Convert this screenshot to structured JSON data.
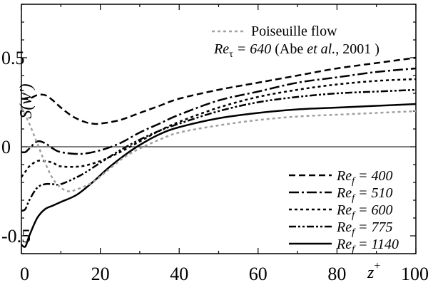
{
  "chart_data": {
    "type": "line",
    "xlabel": "z",
    "xlabel_sup": "+",
    "ylabel": "S(w')",
    "xlim": [
      0,
      100
    ],
    "ylim": [
      -0.6,
      0.8
    ],
    "x_ticks": [
      0,
      20,
      40,
      60,
      80,
      100
    ],
    "y_ticks": [
      -0.5,
      0,
      0.5
    ],
    "y_tick_labels": [
      "-0.5",
      "0",
      "0.5"
    ],
    "x_tick_labels": [
      "0",
      "20",
      "40",
      "60",
      "80",
      "100"
    ],
    "zero_line": true,
    "grid": false,
    "legend_top": {
      "placement": "top-right",
      "line1": "Poiseuille flow",
      "line2_re": "Re",
      "line2_sub": "τ",
      "line2_eq": " = 640",
      "line2_rest_a": " (Abe ",
      "line2_etal": "et al.",
      "line2_rest_b": ", 2001 )"
    },
    "legend_bottom": {
      "placement": "bottom-right"
    },
    "series": [
      {
        "name_re": "Re",
        "name_sub": "f",
        "name_val": " = 400",
        "color": "#000000",
        "dash": "9,5",
        "width": 2.5,
        "x": [
          0,
          2,
          4,
          6,
          8,
          10,
          13,
          16,
          18,
          20,
          25,
          30,
          35,
          40,
          50,
          60,
          70,
          80,
          90,
          100
        ],
        "y": [
          0.27,
          0.27,
          0.29,
          0.29,
          0.26,
          0.22,
          0.17,
          0.14,
          0.13,
          0.13,
          0.15,
          0.19,
          0.23,
          0.27,
          0.32,
          0.36,
          0.4,
          0.44,
          0.47,
          0.5
        ]
      },
      {
        "name_re": "Re",
        "name_sub": "f",
        "name_val": " = 510",
        "color": "#000000",
        "dash": "14,4,3,4",
        "width": 2.5,
        "x": [
          0,
          1,
          2,
          4,
          6,
          8,
          10,
          15,
          20,
          25,
          30,
          35,
          40,
          50,
          60,
          70,
          80,
          90,
          100
        ],
        "y": [
          -0.03,
          -0.03,
          -0.01,
          0.03,
          0.02,
          -0.01,
          -0.03,
          -0.04,
          -0.02,
          0.02,
          0.08,
          0.13,
          0.18,
          0.26,
          0.31,
          0.36,
          0.39,
          0.42,
          0.44
        ]
      },
      {
        "name_re": "Re",
        "name_sub": "f",
        "name_val": " = 600",
        "color": "#000000",
        "dash": "4,4",
        "width": 2.5,
        "x": [
          0,
          1,
          2,
          4,
          6,
          8,
          10,
          15,
          20,
          25,
          30,
          35,
          40,
          50,
          60,
          70,
          80,
          90,
          100
        ],
        "y": [
          -0.17,
          -0.14,
          -0.11,
          -0.08,
          -0.08,
          -0.09,
          -0.11,
          -0.11,
          -0.08,
          -0.03,
          0.03,
          0.09,
          0.14,
          0.22,
          0.28,
          0.32,
          0.35,
          0.37,
          0.38
        ]
      },
      {
        "name_re": "Re",
        "name_sub": "f",
        "name_val": " = 775",
        "color": "#000000",
        "dash": "10,3,3,3,3,3",
        "width": 2.5,
        "x": [
          0,
          1,
          2,
          4,
          6,
          8,
          10,
          15,
          20,
          25,
          30,
          35,
          40,
          50,
          60,
          70,
          80,
          90,
          100
        ],
        "y": [
          -0.36,
          -0.35,
          -0.3,
          -0.23,
          -0.21,
          -0.21,
          -0.21,
          -0.16,
          -0.09,
          -0.02,
          0.04,
          0.09,
          0.13,
          0.2,
          0.25,
          0.28,
          0.3,
          0.31,
          0.32
        ]
      },
      {
        "name_re": "Re",
        "name_sub": "f",
        "name_val": " = 1140",
        "color": "#000000",
        "dash": "",
        "width": 2.5,
        "x": [
          0,
          1,
          2,
          4,
          6,
          8,
          10,
          14,
          18,
          22,
          26,
          30,
          35,
          40,
          50,
          60,
          70,
          80,
          90,
          100
        ],
        "y": [
          -0.55,
          -0.56,
          -0.5,
          -0.4,
          -0.35,
          -0.33,
          -0.31,
          -0.27,
          -0.2,
          -0.12,
          -0.05,
          0.01,
          0.07,
          0.11,
          0.16,
          0.19,
          0.21,
          0.22,
          0.23,
          0.24
        ]
      },
      {
        "name": "Poiseuille flow",
        "color": "#a0a0a0",
        "dash": "4,4",
        "width": 2.5,
        "legend": "top",
        "x": [
          0,
          2,
          4,
          6,
          8,
          10,
          12,
          14,
          18,
          22,
          26,
          30,
          35,
          40,
          50,
          60,
          70,
          80,
          90,
          100
        ],
        "y": [
          0.22,
          0.13,
          0.02,
          -0.09,
          -0.18,
          -0.23,
          -0.25,
          -0.24,
          -0.2,
          -0.13,
          -0.06,
          -0.01,
          0.04,
          0.08,
          0.12,
          0.15,
          0.17,
          0.18,
          0.19,
          0.2
        ]
      }
    ]
  }
}
